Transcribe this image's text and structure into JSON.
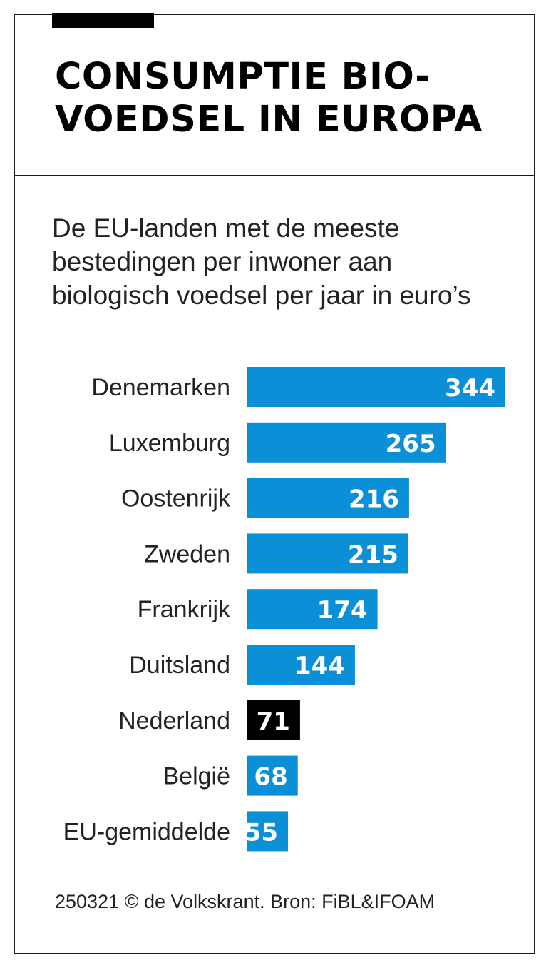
{
  "title_lines": [
    "CONSUMPTIE BIO-",
    "VOEDSEL IN EUROPA"
  ],
  "subtitle_lines": [
    "De EU-landen met de meeste",
    "bestedingen per inwoner aan",
    "biologisch voedsel per jaar in euro’s"
  ],
  "source": "250321 © de Volkskrant. Bron: FiBL&IFOAM",
  "colors": {
    "bar": "#0b8fd6",
    "highlight": "#000000",
    "label_text": "#ffffff"
  },
  "chart_data": {
    "type": "bar",
    "orientation": "horizontal",
    "title": "CONSUMPTIE BIO-VOEDSEL IN EUROPA",
    "categories": [
      "Denemarken",
      "Luxemburg",
      "Oostenrijk",
      "Zweden",
      "Frankrijk",
      "Duitsland",
      "Nederland",
      "België",
      "EU-gemiddelde"
    ],
    "values": [
      344,
      265,
      216,
      215,
      174,
      144,
      71,
      68,
      55
    ],
    "highlight": "Nederland",
    "xlim": [
      0,
      344
    ],
    "grid": false,
    "legend": "none",
    "data_labels": true
  }
}
